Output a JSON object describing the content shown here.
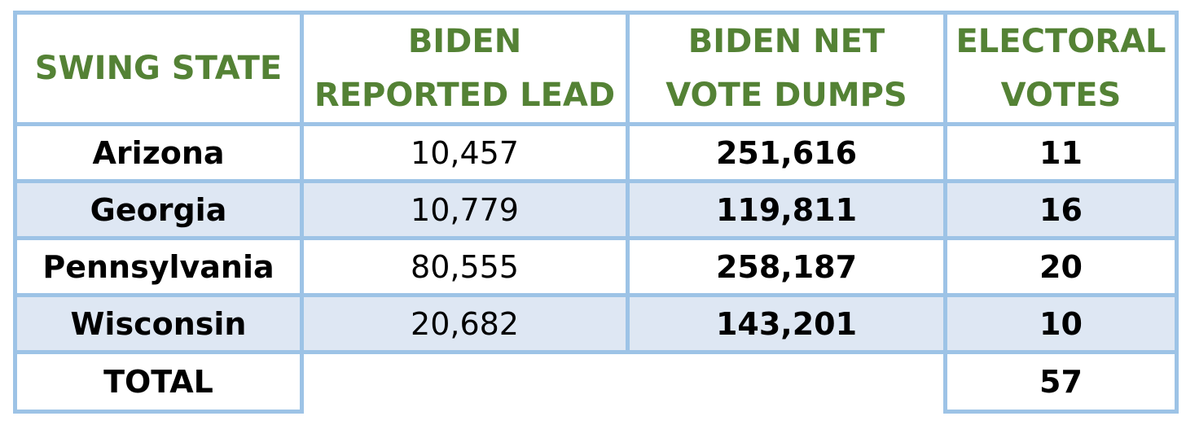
{
  "table": {
    "header": [
      [
        "SWING STATE"
      ],
      [
        "BIDEN",
        "REPORTED LEAD"
      ],
      [
        "BIDEN NET",
        "VOTE DUMPS"
      ],
      [
        "ELECTORAL",
        "VOTES"
      ]
    ],
    "rows": [
      [
        "Arizona",
        "10,457",
        "251,616",
        "11"
      ],
      [
        "Georgia",
        "10,779",
        "119,811",
        "16"
      ],
      [
        "Pennsylvania",
        "80,555",
        "258,187",
        "20"
      ],
      [
        "Wisconsin",
        "20,682",
        "143,201",
        "10"
      ]
    ],
    "total": {
      "label": "TOTAL",
      "electoral_votes": "57"
    }
  }
}
